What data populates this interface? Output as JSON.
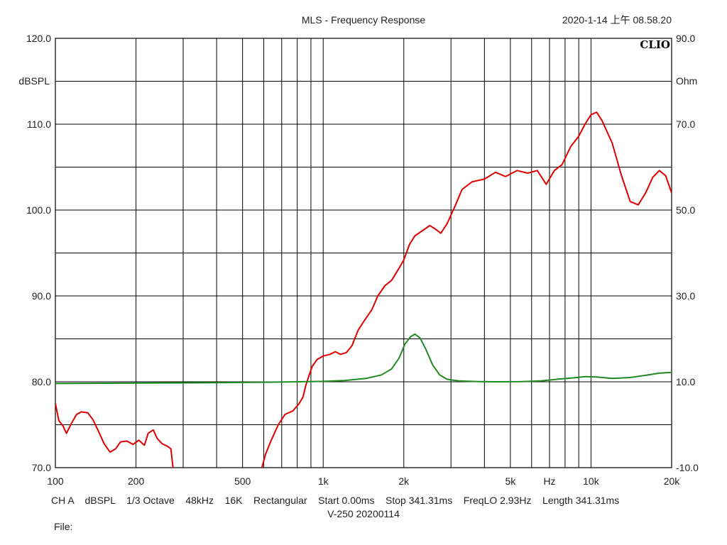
{
  "header": {
    "title": "MLS - Frequency Response",
    "timestamp": "2020-1-14 上午 08.58.20",
    "brand": "CLIO"
  },
  "footer": {
    "line1": "CH A    dBSPL    1/3 Octave    48kHz    16K    Rectangular    Start 0.00ms    Stop 341.31ms    FreqLO 2.93Hz    Length 341.31ms",
    "line2": "V-250  20200114",
    "file_label": "File:"
  },
  "chart_data": {
    "type": "line",
    "title": "MLS - Frequency Response",
    "x_scale": "log",
    "xlim": [
      100,
      20000
    ],
    "x_ticks": [
      {
        "value": 100,
        "label": "100"
      },
      {
        "value": 200,
        "label": "200"
      },
      {
        "value": 500,
        "label": "500"
      },
      {
        "value": 1000,
        "label": "1k"
      },
      {
        "value": 2000,
        "label": "2k"
      },
      {
        "value": 5000,
        "label": "5k"
      },
      {
        "value": 7000,
        "label": "Hz"
      },
      {
        "value": 10000,
        "label": "10k"
      },
      {
        "value": 20000,
        "label": "20k"
      }
    ],
    "ylabel_left": "dBSPL",
    "ylim_left": [
      70,
      120
    ],
    "y_ticks_left": [
      "120.0",
      "110.0",
      "100.0",
      "90.0",
      "80.0",
      "70.0"
    ],
    "ylabel_right": "Ohm",
    "ylim_right": [
      -10,
      90
    ],
    "y_ticks_right": [
      "90.0",
      "70.0",
      "50.0",
      "30.0",
      "10.0",
      "-10.0"
    ],
    "grid": true,
    "colors": {
      "spl": "#e00000",
      "impedance": "#1f8a1f",
      "grid": "#000000",
      "frame": "#000000"
    },
    "series": [
      {
        "key": "spl",
        "axis": "left",
        "segments": [
          [
            [
              100,
              77.5
            ],
            [
              103,
              75.5
            ],
            [
              107,
              74.8
            ],
            [
              110,
              74
            ],
            [
              115,
              75.2
            ],
            [
              120,
              76.2
            ],
            [
              125,
              76.5
            ],
            [
              132,
              76.4
            ],
            [
              138,
              75.6
            ],
            [
              145,
              74.2
            ],
            [
              152,
              72.8
            ],
            [
              160,
              71.8
            ],
            [
              168,
              72.2
            ],
            [
              175,
              73.0
            ],
            [
              185,
              73.1
            ],
            [
              195,
              72.7
            ],
            [
              205,
              73.2
            ],
            [
              215,
              72.6
            ],
            [
              222,
              74.0
            ],
            [
              232,
              74.4
            ],
            [
              240,
              73.4
            ],
            [
              250,
              72.8
            ],
            [
              262,
              72.5
            ],
            [
              270,
              72.2
            ],
            [
              275,
              70.0
            ]
          ],
          [
            [
              590,
              70.0
            ],
            [
              610,
              71.6
            ],
            [
              640,
              73.2
            ],
            [
              680,
              75.0
            ],
            [
              720,
              76.2
            ],
            [
              770,
              76.6
            ],
            [
              810,
              77.4
            ],
            [
              840,
              78.2
            ],
            [
              860,
              79.5
            ],
            [
              880,
              80.5
            ],
            [
              910,
              81.8
            ],
            [
              950,
              82.6
            ],
            [
              1000,
              83.0
            ],
            [
              1060,
              83.2
            ],
            [
              1110,
              83.5
            ],
            [
              1160,
              83.2
            ],
            [
              1220,
              83.4
            ],
            [
              1280,
              84.2
            ],
            [
              1350,
              86.0
            ],
            [
              1430,
              87.2
            ],
            [
              1520,
              88.4
            ],
            [
              1600,
              90.0
            ],
            [
              1700,
              91.2
            ],
            [
              1800,
              91.8
            ],
            [
              1900,
              93.0
            ],
            [
              2000,
              94.2
            ],
            [
              2100,
              96.0
            ],
            [
              2200,
              97.0
            ],
            [
              2350,
              97.6
            ],
            [
              2500,
              98.2
            ],
            [
              2620,
              97.8
            ],
            [
              2750,
              97.3
            ],
            [
              2900,
              98.4
            ],
            [
              3100,
              100.4
            ],
            [
              3300,
              102.4
            ],
            [
              3600,
              103.3
            ],
            [
              4000,
              103.6
            ],
            [
              4400,
              104.4
            ],
            [
              4800,
              103.9
            ],
            [
              5300,
              104.6
            ],
            [
              5800,
              104.3
            ],
            [
              6300,
              104.6
            ],
            [
              6800,
              103.0
            ],
            [
              7300,
              104.6
            ],
            [
              7800,
              105.3
            ],
            [
              8400,
              107.4
            ],
            [
              9000,
              108.6
            ],
            [
              9500,
              110.0
            ],
            [
              10000,
              111.1
            ],
            [
              10500,
              111.4
            ],
            [
              11000,
              110.4
            ],
            [
              12000,
              107.8
            ],
            [
              13000,
              104.0
            ],
            [
              14000,
              101.0
            ],
            [
              15000,
              100.6
            ],
            [
              16000,
              102.0
            ],
            [
              17000,
              103.8
            ],
            [
              18000,
              104.6
            ],
            [
              19000,
              104.0
            ],
            [
              20000,
              102.0
            ]
          ]
        ]
      },
      {
        "key": "impedance",
        "axis": "right",
        "segments": [
          [
            [
              100,
              9.6
            ],
            [
              200,
              9.7
            ],
            [
              400,
              9.8
            ],
            [
              600,
              9.9
            ],
            [
              800,
              10.0
            ],
            [
              1000,
              10.1
            ],
            [
              1200,
              10.3
            ],
            [
              1450,
              10.8
            ],
            [
              1650,
              11.6
            ],
            [
              1800,
              13.0
            ],
            [
              1920,
              15.5
            ],
            [
              2020,
              18.8
            ],
            [
              2120,
              20.5
            ],
            [
              2200,
              21.1
            ],
            [
              2300,
              20.2
            ],
            [
              2420,
              17.5
            ],
            [
              2560,
              14.0
            ],
            [
              2720,
              11.6
            ],
            [
              2900,
              10.6
            ],
            [
              3200,
              10.2
            ],
            [
              3800,
              10.05
            ],
            [
              4500,
              10.0
            ],
            [
              5500,
              10.05
            ],
            [
              6500,
              10.2
            ],
            [
              7500,
              10.6
            ],
            [
              8500,
              10.9
            ],
            [
              9500,
              11.2
            ],
            [
              10500,
              11.1
            ],
            [
              12000,
              10.8
            ],
            [
              14000,
              11.0
            ],
            [
              16000,
              11.5
            ],
            [
              18000,
              12.0
            ],
            [
              20000,
              12.2
            ]
          ]
        ]
      }
    ]
  }
}
